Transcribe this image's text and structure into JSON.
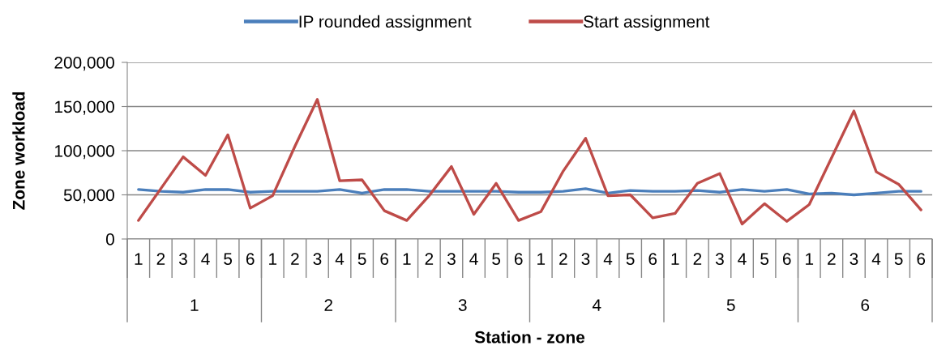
{
  "chart_data": {
    "type": "line",
    "categories": [
      "1",
      "2",
      "3",
      "4",
      "5",
      "6",
      "1",
      "2",
      "3",
      "4",
      "5",
      "6",
      "1",
      "2",
      "3",
      "4",
      "5",
      "6",
      "1",
      "2",
      "3",
      "4",
      "5",
      "6",
      "1",
      "2",
      "3",
      "4",
      "5",
      "6",
      "1",
      "2",
      "3",
      "4",
      "5",
      "6"
    ],
    "annotations": [
      "1",
      "2",
      "3",
      "4",
      "5",
      "6"
    ],
    "xlabel": "Station - zone",
    "ylabel": "Zone workload",
    "series": [
      {
        "name": "IP rounded assignment",
        "color": "#4a7ebb",
        "values": [
          56000,
          54000,
          53000,
          56000,
          56000,
          53000,
          54000,
          54000,
          54000,
          56000,
          52000,
          56000,
          56000,
          54000,
          54000,
          54000,
          54000,
          53000,
          53000,
          54000,
          57000,
          52000,
          55000,
          54000,
          54000,
          55000,
          53000,
          56000,
          54000,
          56000,
          51000,
          52000,
          50000,
          52000,
          54000,
          54000
        ]
      },
      {
        "name": "Start assignment",
        "color": "#be4b48",
        "values": [
          21000,
          57000,
          93000,
          72000,
          118000,
          35000,
          49000,
          105000,
          158000,
          66000,
          67000,
          32000,
          21000,
          49000,
          82000,
          28000,
          63000,
          21000,
          31000,
          77000,
          114000,
          49000,
          50000,
          24000,
          29000,
          63000,
          74000,
          17000,
          40000,
          20000,
          39000,
          92000,
          145000,
          76000,
          62000,
          33000
        ]
      }
    ],
    "ylim": [
      0,
      200000
    ],
    "yticks": [
      0,
      {
        "value": 50000,
        "label": "50,000"
      },
      {
        "value": 100000,
        "label": "100,000"
      },
      {
        "value": 150000,
        "label": "150,000"
      },
      {
        "value": 200000,
        "label": "200,000"
      }
    ],
    "grid": "y",
    "legend": "top",
    "marker": "none",
    "line_style": "solid"
  }
}
